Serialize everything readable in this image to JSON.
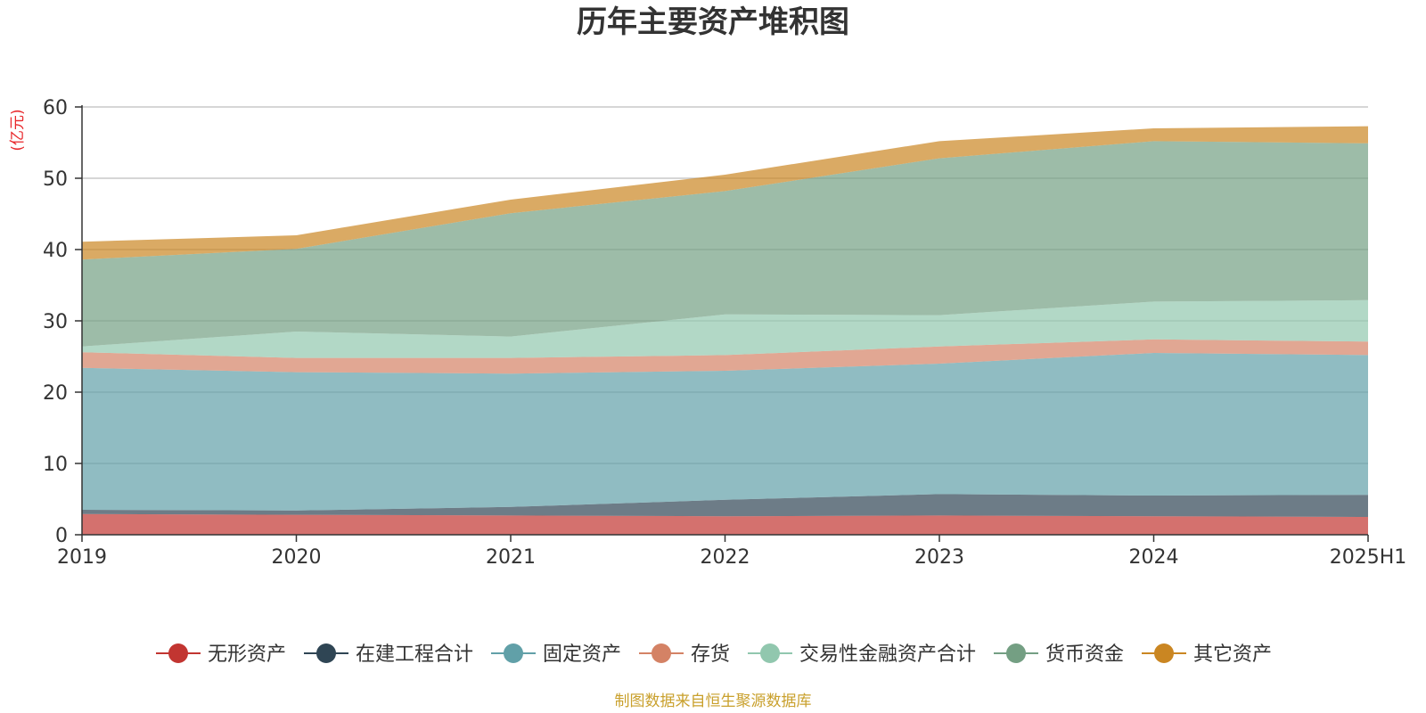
{
  "chart_data": {
    "type": "area",
    "stacked": true,
    "title": "历年主要资产堆积图",
    "ylabel": "(亿元)",
    "xlabel": "",
    "categories": [
      "2019",
      "2020",
      "2021",
      "2022",
      "2023",
      "2024",
      "2025H1"
    ],
    "ylim": [
      0,
      60
    ],
    "yticks": [
      0,
      10,
      20,
      30,
      40,
      50,
      60
    ],
    "grid": true,
    "legend_position": "bottom",
    "series": [
      {
        "name": "无形资产",
        "color": "#c23531",
        "values": [
          2.9,
          2.8,
          2.7,
          2.6,
          2.7,
          2.6,
          2.5
        ]
      },
      {
        "name": "在建工程合计",
        "color": "#2f4554",
        "values": [
          0.6,
          0.6,
          1.2,
          2.3,
          3.0,
          2.9,
          3.1
        ]
      },
      {
        "name": "固定资产",
        "color": "#61a0a8",
        "values": [
          19.9,
          19.4,
          18.7,
          18.1,
          18.3,
          20.0,
          19.6
        ]
      },
      {
        "name": "存货",
        "color": "#d48265",
        "values": [
          2.2,
          2.0,
          2.2,
          2.2,
          2.4,
          1.9,
          1.9
        ]
      },
      {
        "name": "交易性金融资产合计",
        "color": "#91c7ae",
        "values": [
          0.8,
          3.7,
          3.0,
          5.7,
          4.4,
          5.3,
          5.8
        ]
      },
      {
        "name": "货币资金",
        "color": "#749f83",
        "values": [
          12.2,
          11.6,
          17.3,
          17.3,
          22.0,
          22.5,
          22.0
        ]
      },
      {
        "name": "其它资产",
        "color": "#ca8622",
        "values": [
          2.5,
          1.9,
          1.9,
          2.3,
          2.4,
          1.8,
          2.4
        ]
      }
    ]
  },
  "footer": {
    "source": "制图数据来自恒生聚源数据库"
  }
}
